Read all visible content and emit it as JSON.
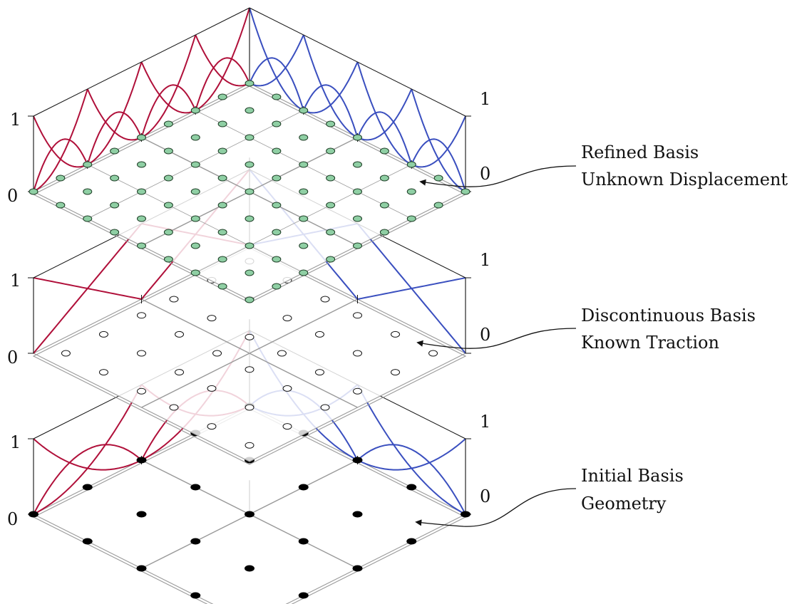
{
  "colors": {
    "red": "#b0103a",
    "blue": "#3a4fbf",
    "green": "#8fcfa4",
    "grid": "#9a9a9a",
    "axis": "#111111"
  },
  "layers": [
    {
      "id": "refined",
      "caption": [
        "Refined Basis",
        "Unknown Displacement"
      ],
      "axis_left": {
        "one": "1",
        "zero": "0"
      },
      "axis_right": {
        "one": "1",
        "zero": "0"
      },
      "node_style": "green",
      "subdiv": 2,
      "degree": 2
    },
    {
      "id": "discontinuous",
      "caption": [
        "Discontinuous Basis",
        "Known Traction"
      ],
      "axis_left": {
        "one": "1",
        "zero": "0"
      },
      "axis_right": {
        "one": "1",
        "zero": "0"
      },
      "node_style": "hollow",
      "subdiv": 1,
      "degree": 1
    },
    {
      "id": "initial",
      "caption": [
        "Initial Basis",
        "Geometry"
      ],
      "axis_left": {
        "one": "1",
        "zero": "0"
      },
      "axis_right": {
        "one": "1",
        "zero": "0"
      },
      "node_style": "black",
      "subdiv": 1,
      "degree": 2
    }
  ]
}
